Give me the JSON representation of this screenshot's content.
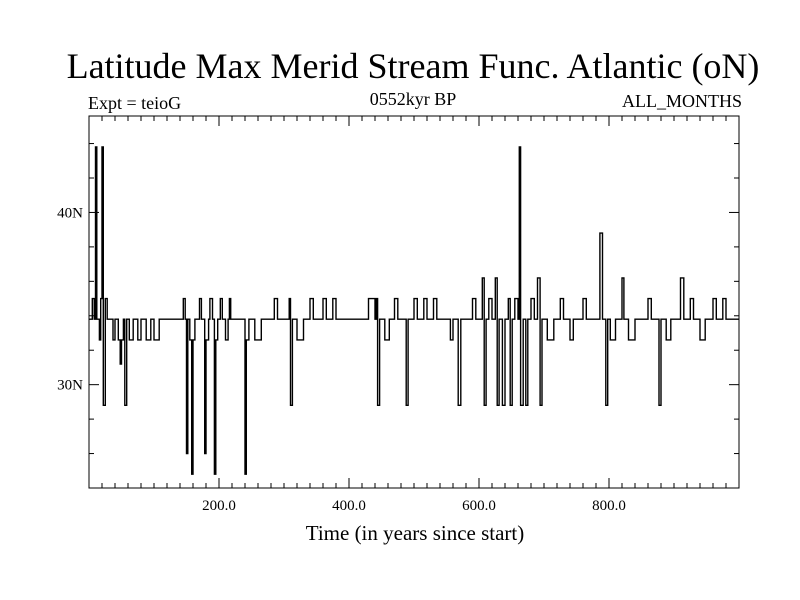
{
  "chart_data": {
    "type": "line",
    "title": "Latitude Max Merid Stream Func. Atlantic (oN)",
    "subtitle_left": "Expt = teioG",
    "subtitle_center": "0552kyr BP",
    "subtitle_right": "ALL_MONTHS",
    "xlabel": "Time (in years since start)",
    "ylabel": "",
    "xlim": [
      0,
      1000
    ],
    "ylim": [
      24.0,
      45.6
    ],
    "x_ticks": [
      200,
      400,
      600,
      800
    ],
    "x_tick_labels": [
      "200.0",
      "400.0",
      "600.0",
      "800.0"
    ],
    "x_minor_step": 20,
    "y_ticks": [
      30,
      40
    ],
    "y_tick_labels": [
      "30N",
      "40N"
    ],
    "y_minor_step": 2,
    "grid": false,
    "legend": "none",
    "series": [
      {
        "name": "Latitude Max Merid Stream Func. Atlantic",
        "baseline": 33.8,
        "segments": [
          [
            0,
            33.8
          ],
          [
            5,
            35.0
          ],
          [
            8,
            33.8
          ],
          [
            10,
            43.8
          ],
          [
            12,
            33.8
          ],
          [
            16,
            32.6
          ],
          [
            18,
            35.0
          ],
          [
            20,
            43.8
          ],
          [
            22,
            28.8
          ],
          [
            25,
            35.0
          ],
          [
            28,
            33.8
          ],
          [
            33,
            33.8
          ],
          [
            37,
            32.6
          ],
          [
            40,
            33.8
          ],
          [
            45,
            32.6
          ],
          [
            48,
            31.2
          ],
          [
            50,
            32.6
          ],
          [
            53,
            33.8
          ],
          [
            55,
            28.8
          ],
          [
            58,
            33.8
          ],
          [
            62,
            32.6
          ],
          [
            68,
            33.8
          ],
          [
            75,
            32.6
          ],
          [
            80,
            33.8
          ],
          [
            88,
            32.6
          ],
          [
            95,
            33.8
          ],
          [
            100,
            32.6
          ],
          [
            108,
            33.8
          ],
          [
            140,
            33.8
          ],
          [
            145,
            35.0
          ],
          [
            148,
            33.8
          ],
          [
            150,
            26.0
          ],
          [
            152,
            33.8
          ],
          [
            155,
            32.6
          ],
          [
            158,
            24.8
          ],
          [
            160,
            32.6
          ],
          [
            163,
            33.8
          ],
          [
            170,
            35.0
          ],
          [
            173,
            33.8
          ],
          [
            178,
            26.0
          ],
          [
            180,
            32.6
          ],
          [
            184,
            33.8
          ],
          [
            186,
            35.0
          ],
          [
            190,
            33.8
          ],
          [
            193,
            24.8
          ],
          [
            195,
            32.6
          ],
          [
            198,
            33.8
          ],
          [
            202,
            35.0
          ],
          [
            205,
            33.8
          ],
          [
            210,
            32.6
          ],
          [
            214,
            33.8
          ],
          [
            216,
            35.0
          ],
          [
            218,
            33.8
          ],
          [
            240,
            24.8
          ],
          [
            242,
            32.6
          ],
          [
            246,
            33.8
          ],
          [
            255,
            32.6
          ],
          [
            265,
            33.8
          ],
          [
            285,
            35.0
          ],
          [
            290,
            33.8
          ],
          [
            308,
            35.0
          ],
          [
            310,
            28.8
          ],
          [
            313,
            33.8
          ],
          [
            320,
            32.6
          ],
          [
            330,
            33.8
          ],
          [
            340,
            35.0
          ],
          [
            345,
            33.8
          ],
          [
            360,
            35.0
          ],
          [
            365,
            33.8
          ],
          [
            375,
            35.0
          ],
          [
            380,
            33.8
          ],
          [
            430,
            35.0
          ],
          [
            440,
            33.8
          ],
          [
            442,
            35.0
          ],
          [
            444,
            28.8
          ],
          [
            447,
            33.8
          ],
          [
            455,
            32.6
          ],
          [
            462,
            33.8
          ],
          [
            470,
            35.0
          ],
          [
            475,
            33.8
          ],
          [
            488,
            28.8
          ],
          [
            491,
            33.8
          ],
          [
            500,
            35.0
          ],
          [
            505,
            33.8
          ],
          [
            515,
            35.0
          ],
          [
            520,
            33.8
          ],
          [
            530,
            35.0
          ],
          [
            535,
            33.8
          ],
          [
            556,
            32.6
          ],
          [
            560,
            33.8
          ],
          [
            568,
            28.8
          ],
          [
            572,
            33.8
          ],
          [
            590,
            35.0
          ],
          [
            595,
            33.8
          ],
          [
            605,
            36.2
          ],
          [
            608,
            28.8
          ],
          [
            611,
            33.8
          ],
          [
            615,
            35.0
          ],
          [
            620,
            33.8
          ],
          [
            625,
            36.2
          ],
          [
            628,
            28.8
          ],
          [
            631,
            33.8
          ],
          [
            636,
            28.8
          ],
          [
            640,
            33.8
          ],
          [
            645,
            35.0
          ],
          [
            648,
            28.8
          ],
          [
            651,
            33.8
          ],
          [
            655,
            35.0
          ],
          [
            660,
            33.8
          ],
          [
            662,
            43.8
          ],
          [
            664,
            28.8
          ],
          [
            668,
            33.8
          ],
          [
            672,
            28.8
          ],
          [
            675,
            33.8
          ],
          [
            680,
            35.0
          ],
          [
            685,
            33.8
          ],
          [
            690,
            36.2
          ],
          [
            694,
            28.8
          ],
          [
            697,
            33.8
          ],
          [
            705,
            32.6
          ],
          [
            715,
            33.8
          ],
          [
            725,
            35.0
          ],
          [
            730,
            33.8
          ],
          [
            740,
            32.6
          ],
          [
            745,
            33.8
          ],
          [
            760,
            35.0
          ],
          [
            765,
            33.8
          ],
          [
            786,
            38.8
          ],
          [
            790,
            33.8
          ],
          [
            795,
            28.8
          ],
          [
            798,
            33.8
          ],
          [
            802,
            32.6
          ],
          [
            810,
            33.8
          ],
          [
            820,
            36.2
          ],
          [
            823,
            33.8
          ],
          [
            830,
            32.6
          ],
          [
            840,
            33.8
          ],
          [
            860,
            35.0
          ],
          [
            865,
            33.8
          ],
          [
            877,
            28.8
          ],
          [
            880,
            33.8
          ],
          [
            888,
            32.6
          ],
          [
            895,
            33.8
          ],
          [
            910,
            36.2
          ],
          [
            915,
            33.8
          ],
          [
            925,
            35.0
          ],
          [
            930,
            33.8
          ],
          [
            940,
            32.6
          ],
          [
            948,
            33.8
          ],
          [
            960,
            35.0
          ],
          [
            965,
            33.8
          ],
          [
            975,
            35.0
          ],
          [
            980,
            33.8
          ],
          [
            1000,
            33.8
          ]
        ]
      }
    ]
  }
}
